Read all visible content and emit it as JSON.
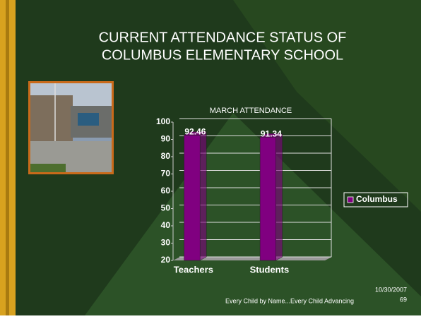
{
  "slide": {
    "title_lines": [
      "CURRENT ATTENDANCE STATUS OF",
      "COLUMBUS ELEMENTARY SCHOOL"
    ],
    "footer": "Every Child by Name...Every Child Advancing",
    "date": "10/30/2007",
    "page_number": "69"
  },
  "chart_data": {
    "type": "bar",
    "title": "MARCH ATTENDANCE",
    "categories": [
      "Teachers",
      "Students"
    ],
    "series": [
      {
        "name": "Columbus",
        "color": "#800080",
        "values": [
          92.46,
          91.34
        ]
      }
    ],
    "ylim": [
      20,
      100
    ],
    "yticks": [
      20,
      30,
      40,
      50,
      60,
      70,
      80,
      90,
      100
    ],
    "grid": true,
    "legend": "right"
  }
}
